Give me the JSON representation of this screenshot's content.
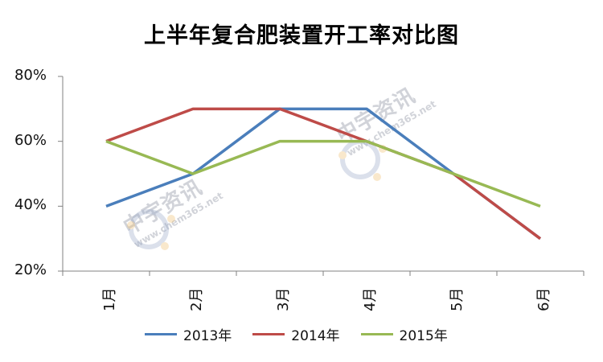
{
  "chart_data": {
    "type": "line",
    "title": "上半年复合肥装置开工率对比图",
    "categories": [
      "1月",
      "2月",
      "3月",
      "4月",
      "5月",
      "6月"
    ],
    "series": [
      {
        "name": "2013年",
        "values": [
          40,
          50,
          70,
          70,
          50,
          30
        ],
        "color": "#4a7ebb"
      },
      {
        "name": "2014年",
        "values": [
          60,
          70,
          70,
          60,
          50,
          30
        ],
        "color": "#be4b48"
      },
      {
        "name": "2015年",
        "values": [
          60,
          50,
          60,
          60,
          50,
          40
        ],
        "color": "#98b954"
      }
    ],
    "ylim": [
      20,
      80
    ],
    "yticks": [
      "20%",
      "40%",
      "60%",
      "80%"
    ],
    "grid": false,
    "legend_position": "bottom"
  },
  "watermark": {
    "brand": "中宇资讯",
    "site": "www.chem365.net"
  }
}
